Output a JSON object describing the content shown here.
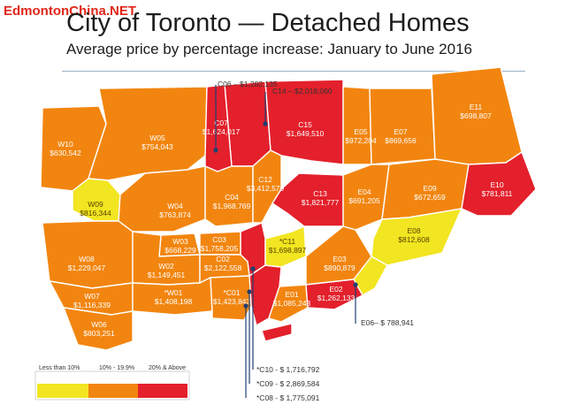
{
  "watermark": "EdmontonChina.NET",
  "title": "City of Toronto — Detached Homes",
  "subtitle": "Average price by percentage increase: January to June 2016",
  "colors": {
    "low": "#f2e521",
    "mid": "#f2850f",
    "high": "#e3202b",
    "border": "#ffffff",
    "pointer": "#1f3f72"
  },
  "legend": {
    "items": [
      {
        "label": "Less than 10%",
        "color": "#f2e521"
      },
      {
        "label": "10% - 19.9%",
        "color": "#f2850f"
      },
      {
        "label": "20% & Above",
        "color": "#e3202b"
      }
    ]
  },
  "districts": [
    {
      "code": "W10",
      "price": "$630,542",
      "tier": "mid"
    },
    {
      "code": "W05",
      "price": "$754,043",
      "tier": "mid"
    },
    {
      "code": "C07",
      "price": "$1,624,017",
      "tier": "high"
    },
    {
      "code": "C15",
      "price": "$1,649,510",
      "tier": "high"
    },
    {
      "code": "E05",
      "price": "$972,204",
      "tier": "mid"
    },
    {
      "code": "E07",
      "price": "$869,656",
      "tier": "mid"
    },
    {
      "code": "E11",
      "price": "$698,807",
      "tier": "mid"
    },
    {
      "code": "W09",
      "price": "$816,344",
      "tier": "low"
    },
    {
      "code": "W04",
      "price": "$763,874",
      "tier": "mid"
    },
    {
      "code": "C04",
      "price": "$1,968,769",
      "tier": "mid"
    },
    {
      "code": "C12",
      "price": "$3,412,579",
      "tier": "mid"
    },
    {
      "code": "C13",
      "price": "$1,821,777",
      "tier": "high"
    },
    {
      "code": "E04",
      "price": "$691,205",
      "tier": "mid"
    },
    {
      "code": "E09",
      "price": "$672,659",
      "tier": "mid"
    },
    {
      "code": "E10",
      "price": "$781,811",
      "tier": "high"
    },
    {
      "code": "W03",
      "price": "$668,229",
      "tier": "mid"
    },
    {
      "code": "C03",
      "price": "$1,758,205",
      "tier": "mid"
    },
    {
      "code": "*C11",
      "price": "$1,698,897",
      "tier": "low"
    },
    {
      "code": "E08",
      "price": "$812,608",
      "tier": "low"
    },
    {
      "code": "W08",
      "price": "$1,229,047",
      "tier": "mid"
    },
    {
      "code": "W02",
      "price": "$1,149,451",
      "tier": "mid"
    },
    {
      "code": "C02",
      "price": "$2,122,558",
      "tier": "mid"
    },
    {
      "code": "E03",
      "price": "$890,879",
      "tier": "mid"
    },
    {
      "code": "W07",
      "price": "$1,116,339",
      "tier": "mid"
    },
    {
      "code": "*W01",
      "price": "$1,408,198",
      "tier": "mid"
    },
    {
      "code": "*C01",
      "price": "$1,423,843",
      "tier": "mid"
    },
    {
      "code": "E01",
      "price": "$1,085,243",
      "tier": "mid"
    },
    {
      "code": "E02",
      "price": "$1,262,133",
      "tier": "high"
    },
    {
      "code": "W06",
      "price": "$803,251",
      "tier": "mid"
    }
  ],
  "callouts": [
    {
      "text": "C06 – $1,282,135"
    },
    {
      "text": "C14 – $2,018,060"
    },
    {
      "text": "E06– $ 788,941"
    },
    {
      "text": "*C10 - $ 1,716,792"
    },
    {
      "text": "*C09 - $ 2,869,584"
    },
    {
      "text": "*C08 - $ 1,775,091"
    }
  ]
}
